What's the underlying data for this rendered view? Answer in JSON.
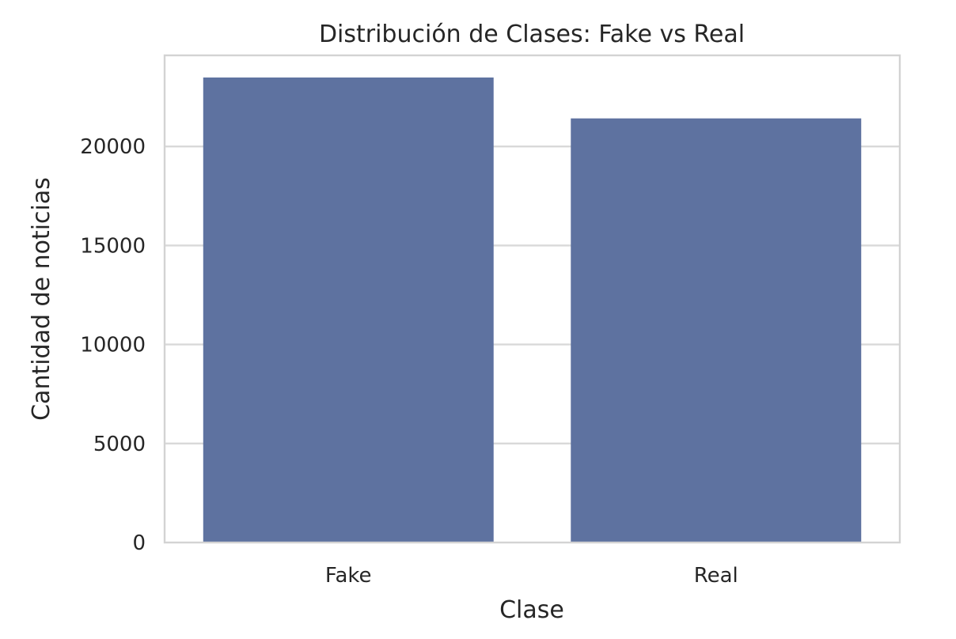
{
  "chart_data": {
    "type": "bar",
    "title": "Distribución de Clases: Fake vs Real",
    "xlabel": "Clase",
    "ylabel": "Cantidad de noticias",
    "categories": [
      "Fake",
      "Real"
    ],
    "values": [
      23481,
      21417
    ],
    "ylim": [
      0,
      24600
    ],
    "yticks": [
      0,
      5000,
      10000,
      15000,
      20000
    ],
    "ytick_labels": [
      "0",
      "5000",
      "10000",
      "15000",
      "20000"
    ],
    "grid": "horizontal",
    "bar_color": "#5e72a0",
    "legend": "none"
  }
}
